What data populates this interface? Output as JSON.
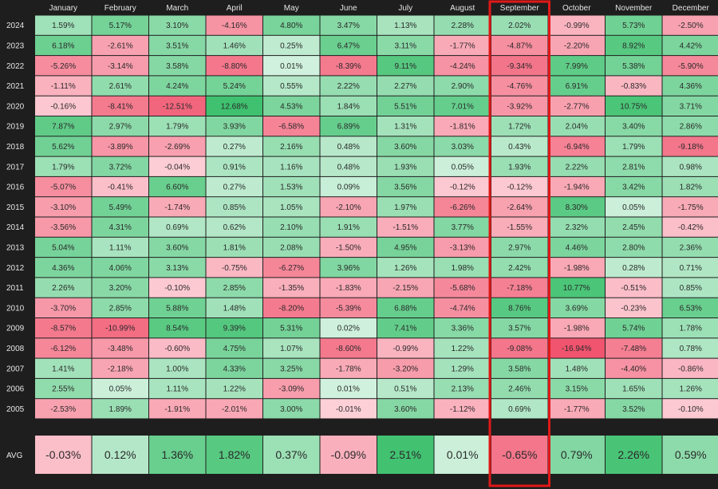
{
  "chart_data": {
    "type": "heatmap",
    "months": [
      "January",
      "February",
      "March",
      "April",
      "May",
      "June",
      "July",
      "August",
      "September",
      "October",
      "November",
      "December"
    ],
    "years": [
      "2024",
      "2023",
      "2022",
      "2021",
      "2020",
      "2019",
      "2018",
      "2017",
      "2016",
      "2015",
      "2014",
      "2013",
      "2012",
      "2011",
      "2010",
      "2009",
      "2008",
      "2007",
      "2006",
      "2005"
    ],
    "values": [
      [
        1.59,
        5.17,
        3.1,
        -4.16,
        4.8,
        3.47,
        1.13,
        2.28,
        2.02,
        -0.99,
        5.73,
        -2.5
      ],
      [
        6.18,
        -2.61,
        3.51,
        1.46,
        0.25,
        6.47,
        3.11,
        -1.77,
        -4.87,
        -2.2,
        8.92,
        4.42
      ],
      [
        -5.26,
        -3.14,
        3.58,
        -8.8,
        0.01,
        -8.39,
        9.11,
        -4.24,
        -9.34,
        7.99,
        5.38,
        -5.9
      ],
      [
        -1.11,
        2.61,
        4.24,
        5.24,
        0.55,
        2.22,
        2.27,
        2.9,
        -4.76,
        6.91,
        -0.83,
        4.36
      ],
      [
        -0.16,
        -8.41,
        -12.51,
        12.68,
        4.53,
        1.84,
        5.51,
        7.01,
        -3.92,
        -2.77,
        10.75,
        3.71
      ],
      [
        7.87,
        2.97,
        1.79,
        3.93,
        -6.58,
        6.89,
        1.31,
        -1.81,
        1.72,
        2.04,
        3.4,
        2.86
      ],
      [
        5.62,
        -3.89,
        -2.69,
        0.27,
        2.16,
        0.48,
        3.6,
        3.03,
        0.43,
        -6.94,
        1.79,
        -9.18
      ],
      [
        1.79,
        3.72,
        -0.04,
        0.91,
        1.16,
        0.48,
        1.93,
        0.05,
        1.93,
        2.22,
        2.81,
        0.98
      ],
      [
        -5.07,
        -0.41,
        6.6,
        0.27,
        1.53,
        0.09,
        3.56,
        -0.12,
        -0.12,
        -1.94,
        3.42,
        1.82
      ],
      [
        -3.1,
        5.49,
        -1.74,
        0.85,
        1.05,
        -2.1,
        1.97,
        -6.26,
        -2.64,
        8.3,
        0.05,
        -1.75
      ],
      [
        -3.56,
        4.31,
        0.69,
        0.62,
        2.1,
        1.91,
        -1.51,
        3.77,
        -1.55,
        2.32,
        2.45,
        -0.42
      ],
      [
        5.04,
        1.11,
        3.6,
        1.81,
        2.08,
        -1.5,
        4.95,
        -3.13,
        2.97,
        4.46,
        2.8,
        2.36
      ],
      [
        4.36,
        4.06,
        3.13,
        -0.75,
        -6.27,
        3.96,
        1.26,
        1.98,
        2.42,
        -1.98,
        0.28,
        0.71
      ],
      [
        2.26,
        3.2,
        -0.1,
        2.85,
        -1.35,
        -1.83,
        -2.15,
        -5.68,
        -7.18,
        10.77,
        -0.51,
        0.85
      ],
      [
        -3.7,
        2.85,
        5.88,
        1.48,
        -8.2,
        -5.39,
        6.88,
        -4.74,
        8.76,
        3.69,
        -0.23,
        6.53
      ],
      [
        -8.57,
        -10.99,
        8.54,
        9.39,
        5.31,
        0.02,
        7.41,
        3.36,
        3.57,
        -1.98,
        5.74,
        1.78
      ],
      [
        -6.12,
        -3.48,
        -0.6,
        4.75,
        1.07,
        -8.6,
        -0.99,
        1.22,
        -9.08,
        -16.94,
        -7.48,
        0.78
      ],
      [
        1.41,
        -2.18,
        1.0,
        4.33,
        3.25,
        -1.78,
        -3.2,
        1.29,
        3.58,
        1.48,
        -4.4,
        -0.86
      ],
      [
        2.55,
        0.05,
        1.11,
        1.22,
        -3.09,
        0.01,
        0.51,
        2.13,
        2.46,
        3.15,
        1.65,
        1.26
      ],
      [
        -2.53,
        1.89,
        -1.91,
        -2.01,
        3.0,
        -0.01,
        3.6,
        -1.12,
        0.69,
        -1.77,
        3.52,
        -0.1
      ]
    ],
    "avg_label": "AVG",
    "avg": [
      -0.03,
      0.12,
      1.36,
      1.82,
      0.37,
      -0.09,
      2.51,
      0.01,
      -0.65,
      0.79,
      2.26,
      0.59
    ],
    "value_suffix": "%",
    "highlighted_month": "September",
    "colors": {
      "background": "#1e1e1e",
      "positive_light": "#d4f2e0",
      "positive_strong": "#3fc16f",
      "negative_light": "#fdd3da",
      "negative_strong": "#f0546e",
      "highlight_border": "#e01818",
      "header_text": "#e6e6e6",
      "cell_text": "#2a2a2a"
    }
  }
}
